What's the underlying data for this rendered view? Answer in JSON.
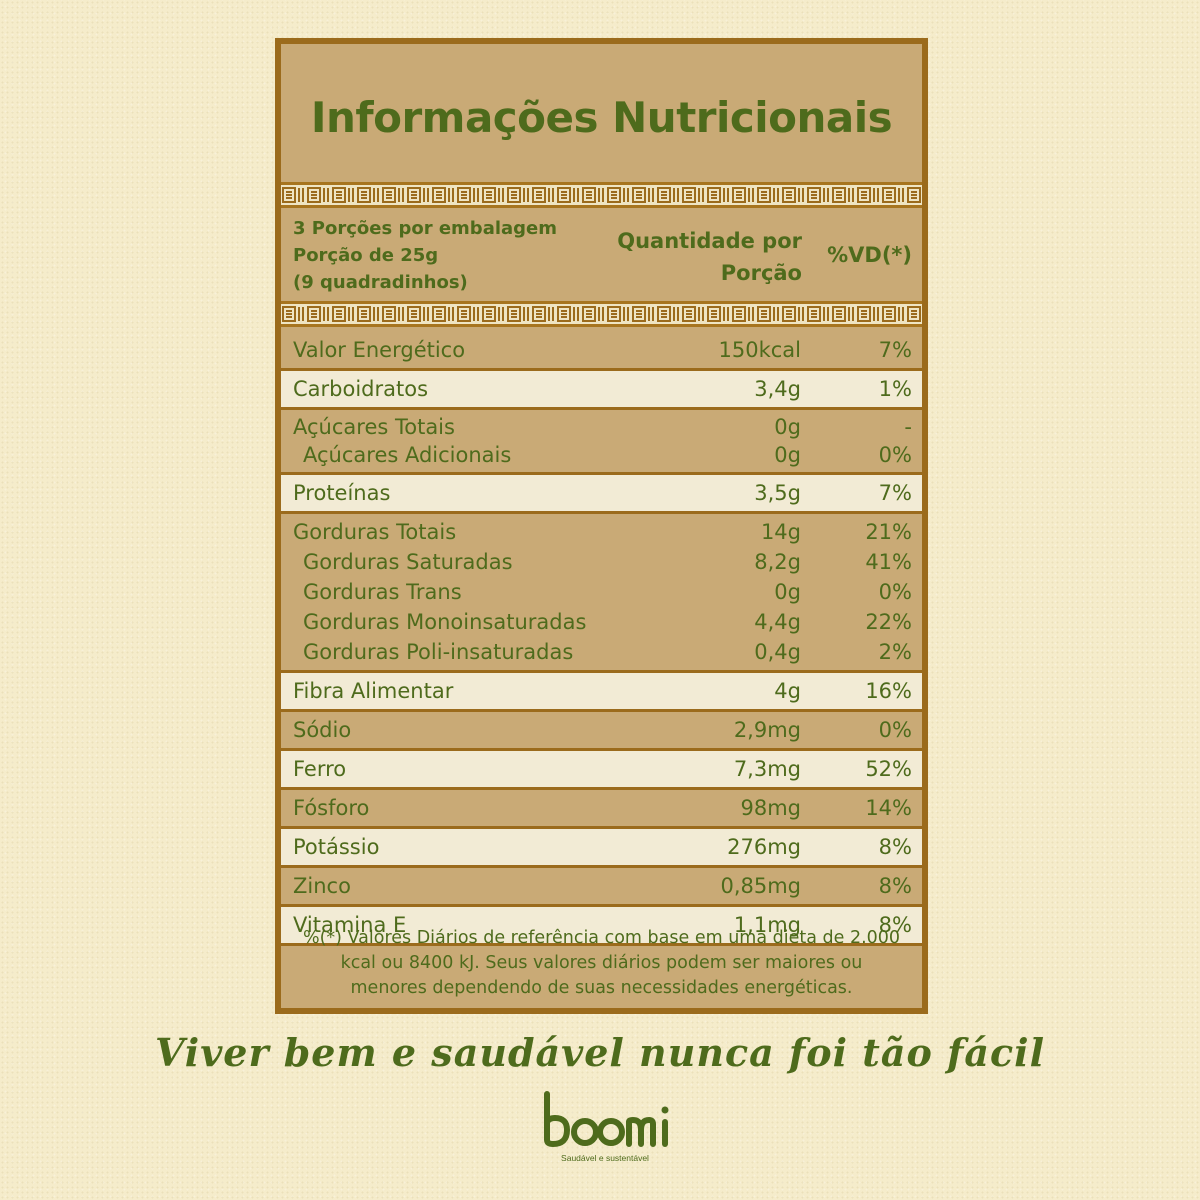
{
  "title": "Informações Nutricionais",
  "header": {
    "servings_line1": "3 Porções por embalagem",
    "servings_line2": "Porção de 25g",
    "servings_line3": "(9 quadradinhos)",
    "qty_line1": "Quantidade por",
    "qty_line2": "Porção",
    "vd": "%VD(*)"
  },
  "groups": [
    {
      "shade": "dark",
      "lines": [
        {
          "name": "Valor Energético",
          "qty": "150kcal",
          "vd": "7%",
          "sub": false
        }
      ]
    },
    {
      "shade": "light",
      "lines": [
        {
          "name": "Carboidratos",
          "qty": "3,4g",
          "vd": "1%",
          "sub": false
        }
      ]
    },
    {
      "shade": "dark",
      "lines": [
        {
          "name": "Açúcares Totais",
          "qty": "0g",
          "vd": "-",
          "sub": false
        },
        {
          "name": "Açúcares Adicionais",
          "qty": "0g",
          "vd": "0%",
          "sub": true
        }
      ]
    },
    {
      "shade": "light",
      "lines": [
        {
          "name": "Proteínas",
          "qty": "3,5g",
          "vd": "7%",
          "sub": false
        }
      ]
    },
    {
      "shade": "dark",
      "lines": [
        {
          "name": "Gorduras Totais",
          "qty": "14g",
          "vd": "21%",
          "sub": false
        },
        {
          "name": "Gorduras Saturadas",
          "qty": "8,2g",
          "vd": "41%",
          "sub": true
        },
        {
          "name": "Gorduras Trans",
          "qty": "0g",
          "vd": "0%",
          "sub": true
        },
        {
          "name": "Gorduras Monoinsaturadas",
          "qty": "4,4g",
          "vd": "22%",
          "sub": true
        },
        {
          "name": "Gorduras Poli-insaturadas",
          "qty": "0,4g",
          "vd": "2%",
          "sub": true
        }
      ]
    },
    {
      "shade": "light",
      "lines": [
        {
          "name": "Fibra Alimentar",
          "qty": "4g",
          "vd": "16%",
          "sub": false
        }
      ]
    },
    {
      "shade": "dark",
      "lines": [
        {
          "name": "Sódio",
          "qty": "2,9mg",
          "vd": "0%",
          "sub": false
        }
      ]
    },
    {
      "shade": "light",
      "lines": [
        {
          "name": "Ferro",
          "qty": "7,3mg",
          "vd": "52%",
          "sub": false
        }
      ]
    },
    {
      "shade": "dark",
      "lines": [
        {
          "name": "Fósforo",
          "qty": "98mg",
          "vd": "14%",
          "sub": false
        }
      ]
    },
    {
      "shade": "light",
      "lines": [
        {
          "name": "Potássio",
          "qty": "276mg",
          "vd": "8%",
          "sub": false
        }
      ]
    },
    {
      "shade": "dark",
      "lines": [
        {
          "name": "Zinco",
          "qty": "0,85mg",
          "vd": "8%",
          "sub": false
        }
      ]
    },
    {
      "shade": "light",
      "lines": [
        {
          "name": "Vitamina E",
          "qty": "1,1mg",
          "vd": "8%",
          "sub": false
        }
      ]
    }
  ],
  "footnote_line1": "%(*) Valores Diários de referência com base em uma dieta de 2.000",
  "footnote_line2": "kcal ou 8400 kJ. Seus valores diários podem ser maiores ou",
  "footnote_line3": "menores dependendo de suas necessidades energéticas.",
  "tagline": "Viver bem e saudável nunca foi tão fácil",
  "logo": {
    "wordmark": "boomi",
    "subtitle": "Saudável e sustentável"
  },
  "colors": {
    "background": "#f5eccb",
    "panel": "#c9aa76",
    "panel_light": "#f2ebd5",
    "border": "#9b6b1c",
    "text_green": "#4e6b1c"
  }
}
